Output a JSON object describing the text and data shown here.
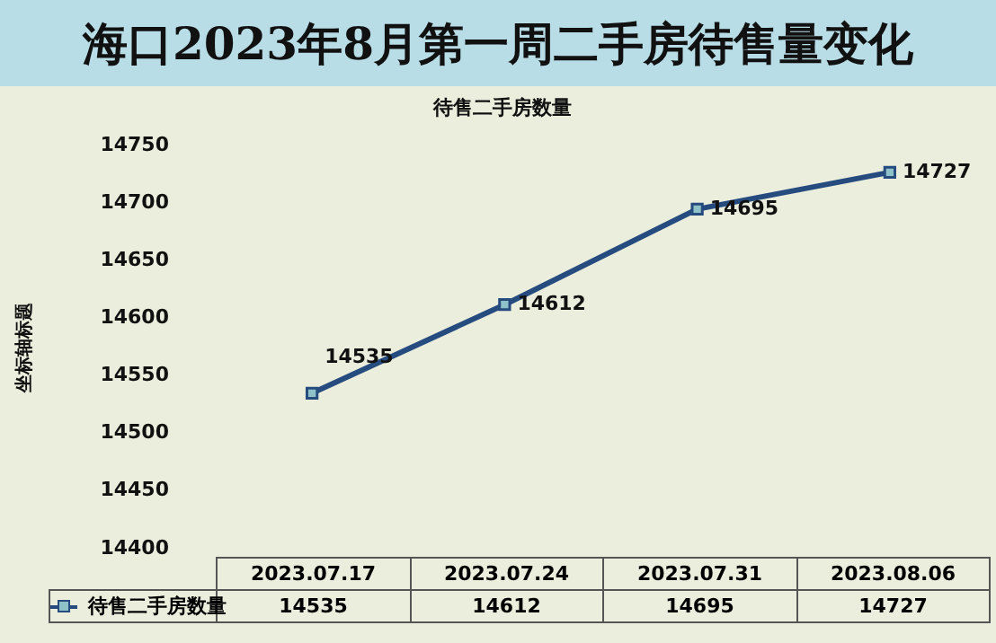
{
  "chart_data": {
    "type": "line",
    "title": "海口2023年8月第一周二手房待售量变化",
    "subtitle": "待售二手房数量",
    "ylabel": "坐标轴标题",
    "categories": [
      "2023.07.17",
      "2023.07.24",
      "2023.07.31",
      "2023.08.06"
    ],
    "series": [
      {
        "name": "待售二手房数量",
        "color": "#264b7f",
        "values": [
          14535,
          14612,
          14695,
          14727
        ]
      }
    ],
    "annotations": [
      {
        "text": "14535",
        "x": "2023.07.17",
        "y": 14535
      },
      {
        "text": "14612",
        "x": "2023.07.24",
        "y": 14612
      },
      {
        "text": "14695",
        "x": "2023.07.31",
        "y": 14695
      },
      {
        "text": "14727",
        "x": "2023.08.06",
        "y": 14727
      }
    ],
    "ylim": [
      14400,
      14750
    ],
    "yticks": [
      14400,
      14450,
      14500,
      14550,
      14600,
      14650,
      14700,
      14750
    ],
    "grid": false,
    "legend": "bottom",
    "marker": "square",
    "line_style": "solid",
    "data_labels": true
  }
}
